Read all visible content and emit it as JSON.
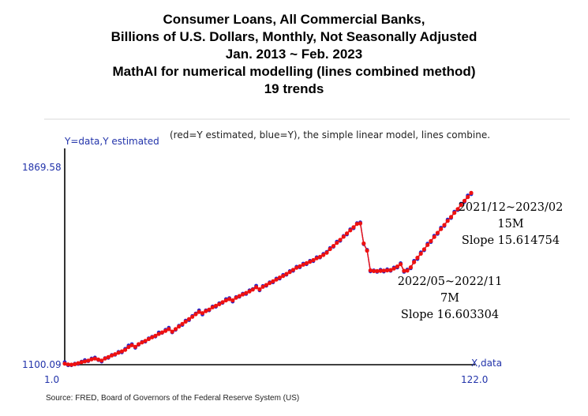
{
  "title_lines": [
    "Consumer Loans, All Commercial Banks,",
    "Billions of U.S. Dollars, Monthly, Not Seasonally Adjusted",
    "Jan. 2013 ~ Feb. 2023",
    "MathAI for numerical modelling (lines combined method)",
    "19 trends"
  ],
  "source": "Source: FRED, Board of Governors of the Federal Reserve System (US)",
  "colors": {
    "estimated": "#ee1111",
    "actual": "#2222cc",
    "axis_text": "#2233aa"
  },
  "chart_data": {
    "type": "scatter",
    "title": "(red=Y estimated, blue=Y), the simple linear model, lines combine.",
    "xlabel": "X,data",
    "ylabel": "Y=data,Y estimated",
    "xlim": [
      1.0,
      122.0
    ],
    "ylim": [
      1100.09,
      1869.58
    ],
    "x_ticks": [
      "1.0",
      "122.0"
    ],
    "y_ticks": [
      "1100.09",
      "1869.58"
    ],
    "grid": false,
    "series": [
      {
        "name": "Y estimated",
        "color": "red",
        "x": [
          1,
          2,
          3,
          4,
          5,
          6,
          7,
          8,
          9,
          10,
          11,
          12,
          13,
          14,
          15,
          16,
          17,
          18,
          19,
          20,
          21,
          22,
          23,
          24,
          25,
          26,
          27,
          28,
          29,
          30,
          31,
          32,
          33,
          34,
          35,
          36,
          37,
          38,
          39,
          40,
          41,
          42,
          43,
          44,
          45,
          46,
          47,
          48,
          49,
          50,
          51,
          52,
          53,
          54,
          55,
          56,
          57,
          58,
          59,
          60,
          61,
          62,
          63,
          64,
          65,
          66,
          67,
          68,
          69,
          70,
          71,
          72,
          73,
          74,
          75,
          76,
          77,
          78,
          79,
          80,
          81,
          82,
          83,
          84,
          85,
          86,
          87,
          88,
          89,
          90,
          91,
          92,
          93,
          94,
          95,
          96,
          97,
          98,
          99,
          100,
          101,
          102,
          103,
          104,
          105,
          106,
          107,
          108,
          109,
          110,
          111,
          112,
          113,
          114,
          115,
          116,
          117,
          118,
          119,
          120,
          121,
          122
        ],
        "y": [
          1104,
          1101,
          1100,
          1102,
          1106,
          1110,
          1113,
          1116,
          1121,
          1124,
          1120,
          1116,
          1124,
          1130,
          1136,
          1141,
          1147,
          1152,
          1158,
          1169,
          1176,
          1170,
          1180,
          1187,
          1193,
          1200,
          1207,
          1213,
          1220,
          1226,
          1232,
          1239,
          1229,
          1239,
          1249,
          1259,
          1268,
          1278,
          1287,
          1297,
          1306,
          1301,
          1309,
          1315,
          1324,
          1330,
          1336,
          1344,
          1351,
          1356,
          1351,
          1361,
          1368,
          1374,
          1380,
          1386,
          1393,
          1402,
          1394,
          1404,
          1411,
          1418,
          1425,
          1432,
          1440,
          1446,
          1454,
          1461,
          1470,
          1478,
          1484,
          1490,
          1496,
          1501,
          1508,
          1515,
          1521,
          1528,
          1537,
          1551,
          1563,
          1575,
          1587,
          1599,
          1612,
          1624,
          1636,
          1649,
          1651,
          1573,
          1545,
          1468,
          1465,
          1465,
          1466,
          1467,
          1468,
          1469,
          1475,
          1483,
          1492,
          1466,
          1467,
          1480,
          1500,
          1517,
          1533,
          1550,
          1567,
          1582,
          1598,
          1614,
          1629,
          1645,
          1661,
          1676,
          1692,
          1707,
          1723,
          1739,
          1754,
          1770
        ]
      },
      {
        "name": "Y",
        "color": "blue",
        "x": [
          1,
          2,
          3,
          4,
          5,
          6,
          7,
          8,
          9,
          10,
          11,
          12,
          13,
          14,
          15,
          16,
          17,
          18,
          19,
          20,
          21,
          22,
          23,
          24,
          25,
          26,
          27,
          28,
          29,
          30,
          31,
          32,
          33,
          34,
          35,
          36,
          37,
          38,
          39,
          40,
          41,
          42,
          43,
          44,
          45,
          46,
          47,
          48,
          49,
          50,
          51,
          52,
          53,
          54,
          55,
          56,
          57,
          58,
          59,
          60,
          61,
          62,
          63,
          64,
          65,
          66,
          67,
          68,
          69,
          70,
          71,
          72,
          73,
          74,
          75,
          76,
          77,
          78,
          79,
          80,
          81,
          82,
          83,
          84,
          85,
          86,
          87,
          88,
          89,
          90,
          91,
          92,
          93,
          94,
          95,
          96,
          97,
          98,
          99,
          100,
          101,
          102,
          103,
          104,
          105,
          106,
          107,
          108,
          109,
          110,
          111,
          112,
          113,
          114,
          115,
          116,
          117,
          118,
          119,
          120,
          121,
          122
        ],
        "y": [
          1110,
          1098,
          1098,
          1104,
          1103,
          1112,
          1118,
          1114,
          1124,
          1128,
          1118,
          1112,
          1126,
          1127,
          1138,
          1139,
          1150,
          1148,
          1162,
          1175,
          1180,
          1166,
          1178,
          1189,
          1190,
          1203,
          1209,
          1210,
          1226,
          1224,
          1236,
          1244,
          1226,
          1236,
          1252,
          1255,
          1272,
          1274,
          1290,
          1300,
          1312,
          1296,
          1312,
          1312,
          1327,
          1326,
          1340,
          1341,
          1356,
          1360,
          1346,
          1364,
          1365,
          1377,
          1376,
          1390,
          1395,
          1408,
          1390,
          1407,
          1408,
          1421,
          1421,
          1436,
          1436,
          1450,
          1451,
          1465,
          1466,
          1482,
          1480,
          1494,
          1492,
          1505,
          1504,
          1519,
          1518,
          1532,
          1540,
          1555,
          1560,
          1580,
          1583,
          1602,
          1608,
          1628,
          1632,
          1652,
          1655,
          1570,
          1548,
          1464,
          1468,
          1462,
          1470,
          1463,
          1472,
          1466,
          1479,
          1479,
          1496,
          1462,
          1471,
          1476,
          1505,
          1512,
          1538,
          1546,
          1572,
          1578,
          1603,
          1610,
          1634,
          1641,
          1666,
          1672,
          1697,
          1703,
          1728,
          1735,
          1760,
          1765
        ]
      }
    ],
    "annotations": [
      {
        "lines": [
          "2021/12~2023/02",
          "15M",
          "Slope 15.614754"
        ]
      },
      {
        "lines": [
          "2022/05~2022/11",
          "7M",
          "Slope 16.603304"
        ]
      }
    ]
  }
}
